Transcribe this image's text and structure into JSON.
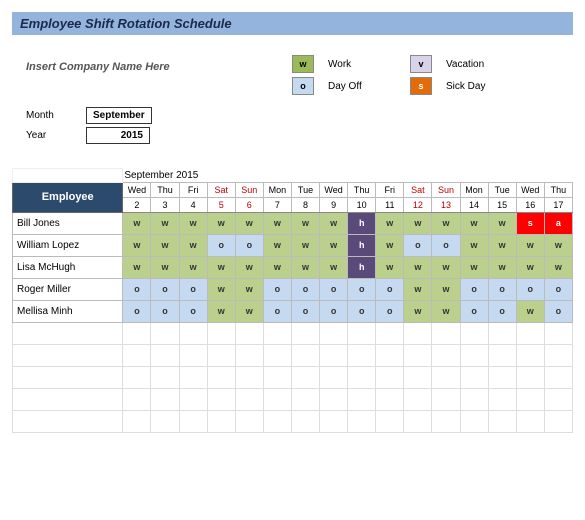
{
  "title": "Employee Shift Rotation Schedule",
  "company_placeholder": "Insert Company Name Here",
  "meta": {
    "month_label": "Month",
    "month_value": "September",
    "year_label": "Year",
    "year_value": "2015"
  },
  "legend": {
    "work": {
      "code": "w",
      "label": "Work",
      "bg": "#9bbb59",
      "fg": "#000000"
    },
    "vacation": {
      "code": "v",
      "label": "Vacation",
      "bg": "#d9d2e9",
      "fg": "#000000"
    },
    "dayoff": {
      "code": "o",
      "label": "Day Off",
      "bg": "#c5d9f1",
      "fg": "#000000"
    },
    "sick": {
      "code": "s",
      "label": "Sick Day",
      "bg": "#e26b0a",
      "fg": "#ffffff"
    }
  },
  "cell_colors": {
    "w": "#bcd08e",
    "o": "#c5d9f1",
    "h": "#5a4a7a",
    "s": "#ff0000",
    "a": "#ff0000",
    "h_fg": "#ffffff",
    "s_fg": "#ffffff",
    "a_fg": "#ffffff",
    "default_fg": "#333333"
  },
  "schedule": {
    "month_title": "September 2015",
    "days": [
      "Wed",
      "Thu",
      "Fri",
      "Sat",
      "Sun",
      "Mon",
      "Tue",
      "Wed",
      "Thu",
      "Fri",
      "Sat",
      "Sun",
      "Mon",
      "Tue",
      "Wed",
      "Thu"
    ],
    "dates": [
      "2",
      "3",
      "4",
      "5",
      "6",
      "7",
      "8",
      "9",
      "10",
      "11",
      "12",
      "13",
      "14",
      "15",
      "16",
      "17"
    ],
    "weekend_idx": [
      3,
      4,
      10,
      11
    ],
    "employee_header": "Employee",
    "employees": [
      {
        "name": "Bill Jones",
        "cells": [
          "w",
          "w",
          "w",
          "w",
          "w",
          "w",
          "w",
          "w",
          "h",
          "w",
          "w",
          "w",
          "w",
          "w",
          "s",
          "a"
        ]
      },
      {
        "name": "William Lopez",
        "cells": [
          "w",
          "w",
          "w",
          "o",
          "o",
          "w",
          "w",
          "w",
          "h",
          "w",
          "o",
          "o",
          "w",
          "w",
          "w",
          "w"
        ]
      },
      {
        "name": "Lisa McHugh",
        "cells": [
          "w",
          "w",
          "w",
          "w",
          "w",
          "w",
          "w",
          "w",
          "h",
          "w",
          "w",
          "w",
          "w",
          "w",
          "w",
          "w"
        ]
      },
      {
        "name": "Roger Miller",
        "cells": [
          "o",
          "o",
          "o",
          "w",
          "w",
          "o",
          "o",
          "o",
          "o",
          "o",
          "w",
          "w",
          "o",
          "o",
          "o",
          "o"
        ]
      },
      {
        "name": "Mellisa Minh",
        "cells": [
          "o",
          "o",
          "o",
          "w",
          "w",
          "o",
          "o",
          "o",
          "o",
          "o",
          "w",
          "w",
          "o",
          "o",
          "w",
          "o"
        ]
      }
    ],
    "empty_rows": 5
  }
}
